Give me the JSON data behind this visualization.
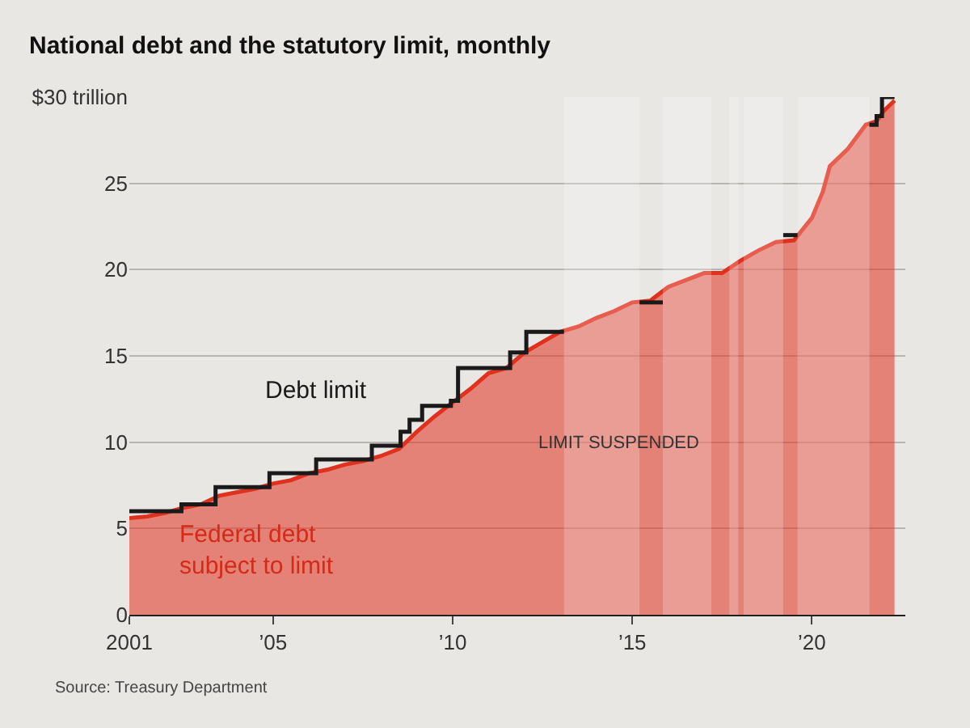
{
  "chart_data": {
    "type": "area",
    "title": "National debt and the statutory limit, monthly",
    "series": [
      {
        "color": "#e0301e",
        "x": [
          2001,
          2001.5,
          2002,
          2002.5,
          2003,
          2003.5,
          2004,
          2004.5,
          2005,
          2005.5,
          2006,
          2006.5,
          2007,
          2007.5,
          2008,
          2008.5,
          2009,
          2009.5,
          2010,
          2010.5,
          2011,
          2011.5,
          2012,
          2012.5,
          2013,
          2013.5,
          2014,
          2014.5,
          2015,
          2015.5,
          2016,
          2016.5,
          2017,
          2017.5,
          2018,
          2018.5,
          2019,
          2019.5,
          2020,
          2020.3,
          2020.5,
          2021,
          2021.5,
          2021.8,
          2022,
          2022.3
        ],
        "values": [
          5.6,
          5.7,
          5.9,
          6.2,
          6.4,
          6.9,
          7.1,
          7.3,
          7.6,
          7.8,
          8.2,
          8.4,
          8.7,
          8.9,
          9.2,
          9.6,
          10.6,
          11.5,
          12.3,
          13.1,
          14.0,
          14.3,
          15.2,
          15.8,
          16.4,
          16.7,
          17.2,
          17.6,
          18.1,
          18.2,
          19.0,
          19.4,
          19.8,
          19.8,
          20.5,
          21.1,
          21.6,
          21.7,
          23.0,
          24.5,
          26.0,
          27.0,
          28.4,
          28.6,
          29.2,
          29.8
        ]
      },
      {
        "type": "step",
        "color": "#1a1a1a",
        "x": [
          2001,
          2002.45,
          2003.4,
          2004.9,
          2006.2,
          2007.75,
          2008.55,
          2008.8,
          2009.15,
          2009.95,
          2010.15,
          2011.6,
          2012.05,
          2013.1
        ],
        "values": [
          6.0,
          6.4,
          7.4,
          8.2,
          9.0,
          9.8,
          10.6,
          11.3,
          12.1,
          12.4,
          14.3,
          15.2,
          16.4,
          16.4
        ]
      },
      {
        "type": "step",
        "color": "#1a1a1a",
        "x": [
          2015.2,
          2015.85
        ],
        "values": [
          18.1,
          18.1
        ]
      },
      {
        "type": "step",
        "color": "#1a1a1a",
        "x": [
          2019.2,
          2019.6
        ],
        "values": [
          22.0,
          22.0
        ]
      },
      {
        "type": "step",
        "color": "#1a1a1a",
        "x": [
          2021.6,
          2021.8,
          2021.95,
          2022.3
        ],
        "values": [
          28.4,
          28.9,
          30.0,
          30.0
        ]
      }
    ],
    "bands": [
      {
        "axis": "x",
        "from": 2013.1,
        "to": 2015.2,
        "color": "#ffffff"
      },
      {
        "axis": "x",
        "from": 2015.85,
        "to": 2017.2,
        "color": "#ffffff"
      },
      {
        "axis": "x",
        "from": 2017.7,
        "to": 2017.95,
        "color": "#ffffff"
      },
      {
        "axis": "x",
        "from": 2018.1,
        "to": 2019.2,
        "color": "#ffffff"
      },
      {
        "axis": "x",
        "from": 2019.6,
        "to": 2021.6,
        "color": "#ffffff"
      }
    ],
    "annotations": [
      "Debt limit",
      "Federal debt\nsubject to limit",
      "LIMIT SUSPENDED",
      "Source: Treasury Department"
    ],
    "xlim": [
      2001,
      2022.6
    ],
    "xticks": [
      {
        "value": 2001,
        "label": "2001"
      },
      {
        "value": 2005,
        "label": "’05"
      },
      {
        "value": 2010,
        "label": "’10"
      },
      {
        "value": 2015,
        "label": "’15"
      },
      {
        "value": 2020,
        "label": "’20"
      }
    ],
    "ylim": [
      0,
      30
    ],
    "yticks": [
      0,
      5,
      10,
      15,
      20,
      25,
      {
        "value": 30,
        "label": "$30 trillion"
      }
    ],
    "grid": "y"
  }
}
